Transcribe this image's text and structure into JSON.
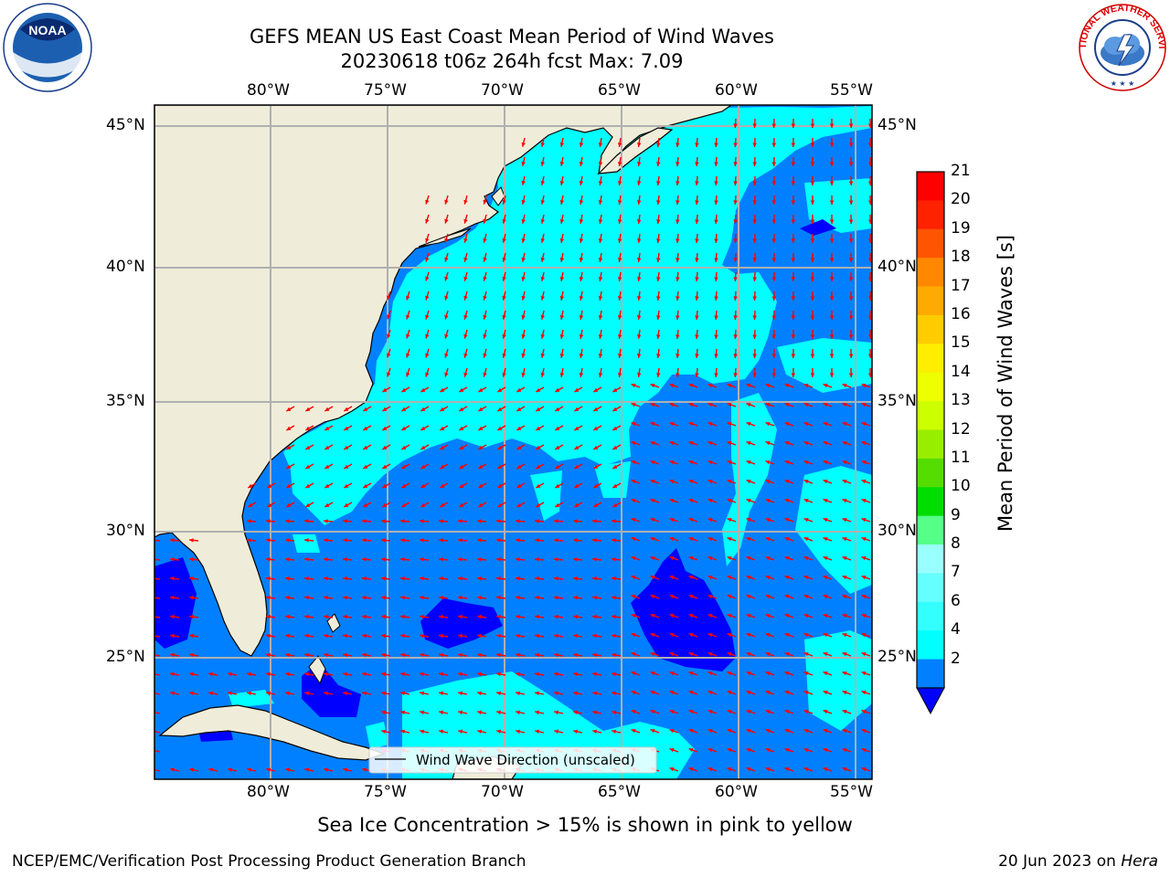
{
  "title": {
    "line1": "GEFS MEAN US East Coast Mean Period of Wind Waves",
    "line2": "20230618 t06z 264h fcst   Max: 7.09"
  },
  "logos": {
    "left": {
      "text": "NOAA",
      "ring_text": "NATIONAL OCEANIC AND ATMOSPHERIC ADMINISTRATION · U.S. DEPARTMENT OF COMMERCE"
    },
    "right": {
      "ring_text": "NATIONAL WEATHER SERVICE"
    }
  },
  "map": {
    "lon_labels": [
      "80°W",
      "75°W",
      "70°W",
      "65°W",
      "60°W",
      "55°W"
    ],
    "lat_labels": [
      "45°N",
      "40°N",
      "35°N",
      "30°N",
      "25°N"
    ],
    "legend": "Wind Wave Direction (unscaled)",
    "colors": {
      "land": "#efedd9",
      "level_2_4": "#0080ff",
      "level_4_6": "#00ffff",
      "below_2": "#0000ff",
      "arrows": "#ff0000",
      "grid": "#b0b0b0"
    }
  },
  "colorbar": {
    "title": "Mean Period of Wind Waves [s]",
    "ticks": [
      "21",
      "20",
      "19",
      "18",
      "17",
      "16",
      "15",
      "14",
      "13",
      "12",
      "11",
      "10",
      "9",
      "8",
      "7",
      "6",
      "4",
      "2"
    ],
    "colors": [
      "#ff0000",
      "#ff2200",
      "#ff5500",
      "#ff8800",
      "#ffaa00",
      "#ffcc00",
      "#ffee00",
      "#eeff00",
      "#ccff00",
      "#99ee00",
      "#55dd00",
      "#00dd00",
      "#55ff88",
      "#99ffff",
      "#66ffff",
      "#33ffff",
      "#00ffff",
      "#0080ff"
    ],
    "under_color": "#0000ff"
  },
  "note": "Sea Ice Concentration > 15% is shown in pink to yellow",
  "footer": {
    "left": "NCEP/EMC/Verification Post Processing Product Generation Branch",
    "date": "20 Jun 2023 on ",
    "host": "Hera"
  }
}
